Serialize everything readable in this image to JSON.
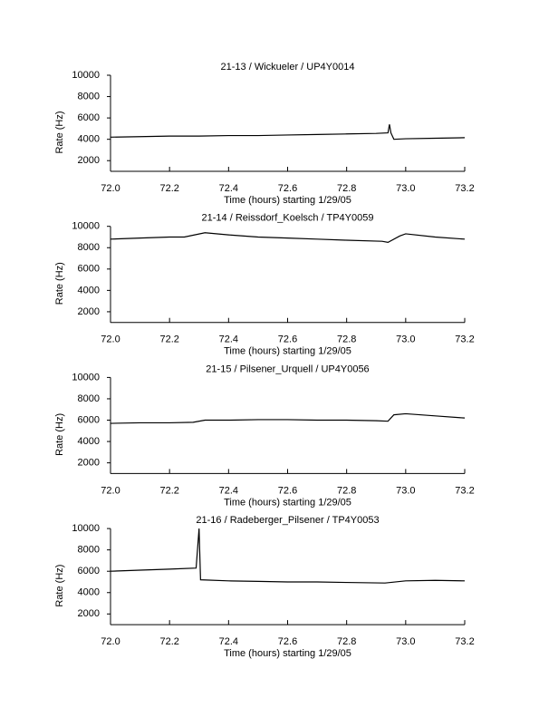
{
  "chart_data": [
    {
      "type": "line",
      "title": "21-13 / Wickueler / UP4Y0014",
      "x_label": "Time (hours) starting 1/29/05",
      "y_label": "Rate (Hz)",
      "x": [
        72.0,
        72.1,
        72.2,
        72.3,
        72.4,
        72.5,
        72.6,
        72.7,
        72.8,
        72.9,
        72.94,
        72.945,
        72.95,
        72.96,
        73.0,
        73.1,
        73.2
      ],
      "series": [
        {
          "color": "#000000",
          "values": [
            4200,
            4250,
            4300,
            4300,
            4350,
            4350,
            4400,
            4450,
            4500,
            4550,
            4600,
            5400,
            4600,
            4000,
            4050,
            4100,
            4150
          ]
        }
      ],
      "xlim": [
        72.0,
        73.2
      ],
      "ylim": [
        1000,
        10000
      ],
      "xticks": [
        {
          "value": 72.0,
          "label": "72.0"
        },
        72.2,
        72.4,
        72.6,
        72.8,
        {
          "value": 73.0,
          "label": "73.0"
        },
        73.2
      ],
      "yticks": [
        2000,
        4000,
        6000,
        8000,
        10000
      ]
    },
    {
      "type": "line",
      "title": "21-14 / Reissdorf_Koelsch / TP4Y0059",
      "x_label": "Time (hours) starting 1/29/05",
      "y_label": "Rate (Hz)",
      "x": [
        72.0,
        72.1,
        72.2,
        72.25,
        72.32,
        72.4,
        72.5,
        72.6,
        72.7,
        72.8,
        72.92,
        72.94,
        72.98,
        73.0,
        73.1,
        73.2
      ],
      "series": [
        {
          "color": "#000000",
          "values": [
            8800,
            8900,
            9000,
            9000,
            9400,
            9200,
            9000,
            8900,
            8800,
            8700,
            8600,
            8500,
            9100,
            9300,
            9000,
            8800
          ]
        }
      ],
      "xlim": [
        72.0,
        73.2
      ],
      "ylim": [
        1000,
        10000
      ],
      "xticks": [
        {
          "value": 72.0,
          "label": "72.0"
        },
        72.2,
        72.4,
        72.6,
        72.8,
        {
          "value": 73.0,
          "label": "73.0"
        },
        73.2
      ],
      "yticks": [
        2000,
        4000,
        6000,
        8000,
        10000
      ]
    },
    {
      "type": "line",
      "title": "21-15 / Pilsener_Urquell / UP4Y0056",
      "x_label": "Time (hours) starting 1/29/05",
      "y_label": "Rate (Hz)",
      "x": [
        72.0,
        72.1,
        72.2,
        72.28,
        72.32,
        72.4,
        72.5,
        72.6,
        72.7,
        72.8,
        72.9,
        72.94,
        72.96,
        73.0,
        73.1,
        73.2
      ],
      "series": [
        {
          "color": "#000000",
          "values": [
            5700,
            5750,
            5750,
            5800,
            6000,
            6000,
            6050,
            6050,
            6000,
            6000,
            5950,
            5900,
            6500,
            6600,
            6400,
            6200
          ]
        }
      ],
      "xlim": [
        72.0,
        73.2
      ],
      "ylim": [
        1000,
        10000
      ],
      "xticks": [
        {
          "value": 72.0,
          "label": "72.0"
        },
        72.2,
        72.4,
        72.6,
        72.8,
        {
          "value": 73.0,
          "label": "73.0"
        },
        73.2
      ],
      "yticks": [
        2000,
        4000,
        6000,
        8000,
        10000
      ]
    },
    {
      "type": "line",
      "title": "21-16 / Radeberger_Pilsener / TP4Y0053",
      "x_label": "Time (hours) starting 1/29/05",
      "y_label": "Rate (Hz)",
      "x": [
        72.0,
        72.1,
        72.2,
        72.29,
        72.3,
        72.305,
        72.4,
        72.5,
        72.6,
        72.7,
        72.8,
        72.93,
        73.0,
        73.1,
        73.2
      ],
      "series": [
        {
          "color": "#000000",
          "values": [
            6000,
            6100,
            6200,
            6300,
            10000,
            5200,
            5100,
            5050,
            5000,
            5000,
            4950,
            4900,
            5100,
            5150,
            5100
          ]
        }
      ],
      "xlim": [
        72.0,
        73.2
      ],
      "ylim": [
        1000,
        10000
      ],
      "xticks": [
        {
          "value": 72.0,
          "label": "72.0"
        },
        72.2,
        72.4,
        72.6,
        72.8,
        {
          "value": 73.0,
          "label": "73.0"
        },
        73.2
      ],
      "yticks": [
        2000,
        4000,
        6000,
        8000,
        10000
      ]
    }
  ]
}
